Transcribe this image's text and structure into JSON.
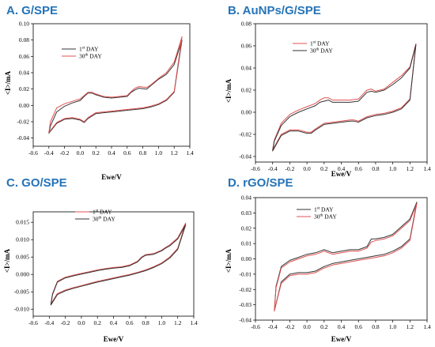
{
  "colors": {
    "panel_label": "#2574b8",
    "day1": "#333333",
    "day30": "#e05050"
  },
  "chart_data": [
    {
      "type": "line",
      "panel_label": "A.   G/SPE",
      "xlabel": "Ewe/V",
      "ylabel": "<I>/mA",
      "xlim": [
        -0.6,
        1.4
      ],
      "ylim": [
        -0.05,
        0.1
      ],
      "xticks": [
        "-0.6",
        "-0.4",
        "-0.2",
        "0.0",
        "0.2",
        "0.4",
        "0.6",
        "0.8",
        "1.0",
        "1.2",
        "1.4"
      ],
      "yticks": [
        "-0.04",
        "-0.02",
        "0.00",
        "0.02",
        "0.04",
        "0.06",
        "0.08",
        "0.10"
      ],
      "legend": [
        "1st DAY",
        "30th DAY"
      ],
      "series": [
        {
          "name": "1st DAY",
          "color": "#333333",
          "x": [
            -0.4,
            -0.3,
            -0.2,
            -0.1,
            0.0,
            0.05,
            0.1,
            0.2,
            0.3,
            0.4,
            0.5,
            0.6,
            0.7,
            0.8,
            0.9,
            1.0,
            1.1,
            1.2,
            1.3,
            1.3,
            1.2,
            1.1,
            1.0,
            0.9,
            0.85,
            0.75,
            0.7,
            0.65,
            0.6,
            0.5,
            0.4,
            0.3,
            0.2,
            0.15,
            0.1,
            0.05,
            0.0,
            -0.1,
            -0.2,
            -0.3,
            -0.38,
            -0.4
          ],
          "y": [
            -0.034,
            -0.022,
            -0.017,
            -0.016,
            -0.018,
            -0.021,
            -0.016,
            -0.01,
            -0.009,
            -0.008,
            -0.007,
            -0.006,
            -0.005,
            -0.004,
            -0.002,
            0.001,
            0.006,
            0.016,
            0.08,
            0.08,
            0.05,
            0.038,
            0.032,
            0.024,
            0.02,
            0.021,
            0.019,
            0.016,
            0.011,
            0.01,
            0.009,
            0.01,
            0.013,
            0.015,
            0.015,
            0.011,
            0.006,
            0.003,
            -0.001,
            -0.008,
            -0.025,
            -0.034
          ]
        },
        {
          "name": "30th DAY",
          "color": "#e05050",
          "x": [
            -0.4,
            -0.3,
            -0.2,
            -0.1,
            0.0,
            0.05,
            0.1,
            0.2,
            0.3,
            0.4,
            0.5,
            0.6,
            0.7,
            0.8,
            0.9,
            1.0,
            1.1,
            1.2,
            1.3,
            1.3,
            1.2,
            1.1,
            1.0,
            0.9,
            0.85,
            0.75,
            0.7,
            0.65,
            0.6,
            0.5,
            0.4,
            0.3,
            0.2,
            0.15,
            0.1,
            0.05,
            0.0,
            -0.1,
            -0.2,
            -0.3,
            -0.38,
            -0.4
          ],
          "y": [
            -0.033,
            -0.021,
            -0.016,
            -0.015,
            -0.017,
            -0.02,
            -0.015,
            -0.009,
            -0.008,
            -0.007,
            -0.006,
            -0.005,
            -0.004,
            -0.003,
            -0.001,
            0.002,
            0.007,
            0.017,
            0.084,
            0.084,
            0.053,
            0.04,
            0.033,
            0.025,
            0.022,
            0.023,
            0.021,
            0.017,
            0.012,
            0.011,
            0.01,
            0.011,
            0.014,
            0.016,
            0.016,
            0.012,
            0.008,
            0.005,
            0.002,
            -0.003,
            -0.02,
            -0.033
          ]
        }
      ]
    },
    {
      "type": "line",
      "panel_label": "B.   AuNPs/G/SPE",
      "xlabel": "Ewe/V",
      "ylabel": "<I>/mA",
      "xlim": [
        -0.6,
        1.4
      ],
      "ylim": [
        -0.045,
        0.08
      ],
      "xticks": [
        "-0.6",
        "-0.4",
        "-0.2",
        "0.0",
        "0.2",
        "0.4",
        "0.6",
        "0.8",
        "1.0",
        "1.2",
        "1.4"
      ],
      "yticks": [
        "-0.04",
        "-0.02",
        "0.00",
        "0.02",
        "0.04",
        "0.06",
        "0.08"
      ],
      "legend": [
        "1st DAY",
        "30th DAY"
      ],
      "series": [
        {
          "name": "1st DAY",
          "color": "#e05050",
          "x": [
            -0.4,
            -0.3,
            -0.2,
            -0.1,
            0.0,
            0.05,
            0.1,
            0.2,
            0.3,
            0.4,
            0.5,
            0.55,
            0.6,
            0.7,
            0.8,
            0.9,
            1.0,
            1.1,
            1.2,
            1.27,
            1.27,
            1.2,
            1.1,
            1.0,
            0.9,
            0.8,
            0.75,
            0.7,
            0.65,
            0.6,
            0.5,
            0.4,
            0.3,
            0.25,
            0.2,
            0.15,
            0.1,
            0.0,
            -0.1,
            -0.2,
            -0.3,
            -0.38,
            -0.4
          ],
          "y": [
            -0.034,
            -0.02,
            -0.016,
            -0.016,
            -0.018,
            -0.018,
            -0.015,
            -0.01,
            -0.009,
            -0.008,
            -0.007,
            -0.007,
            -0.008,
            -0.004,
            -0.002,
            -0.001,
            0.001,
            0.004,
            0.012,
            0.062,
            0.062,
            0.041,
            0.033,
            0.027,
            0.021,
            0.019,
            0.021,
            0.02,
            0.016,
            0.012,
            0.011,
            0.011,
            0.011,
            0.013,
            0.013,
            0.011,
            0.008,
            0.005,
            0.002,
            -0.002,
            -0.01,
            -0.025,
            -0.034
          ]
        },
        {
          "name": "30th DAY",
          "color": "#333333",
          "x": [
            -0.4,
            -0.3,
            -0.2,
            -0.1,
            0.0,
            0.05,
            0.1,
            0.2,
            0.3,
            0.4,
            0.5,
            0.55,
            0.6,
            0.7,
            0.8,
            0.9,
            1.0,
            1.1,
            1.2,
            1.27,
            1.27,
            1.2,
            1.1,
            1.0,
            0.9,
            0.8,
            0.75,
            0.7,
            0.65,
            0.6,
            0.5,
            0.4,
            0.3,
            0.25,
            0.2,
            0.15,
            0.1,
            0.0,
            -0.1,
            -0.2,
            -0.3,
            -0.38,
            -0.4
          ],
          "y": [
            -0.035,
            -0.021,
            -0.017,
            -0.017,
            -0.019,
            -0.019,
            -0.016,
            -0.011,
            -0.01,
            -0.009,
            -0.008,
            -0.008,
            -0.009,
            -0.005,
            -0.003,
            -0.002,
            0.0,
            0.003,
            0.011,
            0.061,
            0.061,
            0.04,
            0.031,
            0.025,
            0.02,
            0.018,
            0.019,
            0.018,
            0.014,
            0.01,
            0.009,
            0.009,
            0.009,
            0.011,
            0.01,
            0.009,
            0.006,
            0.003,
            0.0,
            -0.004,
            -0.012,
            -0.026,
            -0.035
          ]
        }
      ]
    },
    {
      "type": "line",
      "panel_label": "C.   GO/SPE",
      "xlabel": "Ewe/V",
      "ylabel": "<I>/mA",
      "xlim": [
        -0.6,
        1.4
      ],
      "ylim": [
        -0.012,
        0.018
      ],
      "xticks": [
        "-0.6",
        "-0.4",
        "-0.2",
        "0.0",
        "0.2",
        "0.4",
        "0.6",
        "0.8",
        "1.0",
        "1.2",
        "1.4"
      ],
      "yticks": [
        "-0.010",
        "-0.005",
        "0.000",
        "0.005",
        "0.010",
        "0.015"
      ],
      "legend": [
        "1st DAY",
        "30th DAY"
      ],
      "series": [
        {
          "name": "1st DAY",
          "color": "#e05050",
          "x": [
            -0.38,
            -0.3,
            -0.2,
            -0.1,
            0.0,
            0.1,
            0.2,
            0.3,
            0.4,
            0.5,
            0.6,
            0.7,
            0.8,
            0.9,
            1.0,
            1.1,
            1.2,
            1.3,
            1.3,
            1.2,
            1.1,
            1.05,
            1.0,
            0.9,
            0.8,
            0.75,
            0.7,
            0.6,
            0.5,
            0.4,
            0.3,
            0.2,
            0.1,
            0.0,
            -0.1,
            -0.2,
            -0.3,
            -0.36,
            -0.38
          ],
          "y": [
            -0.0085,
            -0.0055,
            -0.0045,
            -0.0038,
            -0.0032,
            -0.0026,
            -0.002,
            -0.0015,
            -0.001,
            -0.0005,
            0.0,
            0.0006,
            0.0013,
            0.0022,
            0.0033,
            0.005,
            0.0075,
            0.0148,
            0.0148,
            0.0105,
            0.0085,
            0.0078,
            0.007,
            0.006,
            0.0057,
            0.005,
            0.0038,
            0.0027,
            0.0022,
            0.002,
            0.0017,
            0.0013,
            0.0008,
            0.0003,
            -0.0002,
            -0.0008,
            -0.002,
            -0.0055,
            -0.0085
          ]
        },
        {
          "name": "30th DAY",
          "color": "#333333",
          "x": [
            -0.38,
            -0.3,
            -0.2,
            -0.1,
            0.0,
            0.1,
            0.2,
            0.3,
            0.4,
            0.5,
            0.6,
            0.7,
            0.8,
            0.9,
            1.0,
            1.1,
            1.2,
            1.3,
            1.3,
            1.2,
            1.1,
            1.05,
            1.0,
            0.9,
            0.8,
            0.75,
            0.7,
            0.6,
            0.5,
            0.4,
            0.3,
            0.2,
            0.1,
            0.0,
            -0.1,
            -0.2,
            -0.3,
            -0.36,
            -0.38
          ],
          "y": [
            -0.0088,
            -0.0058,
            -0.0047,
            -0.004,
            -0.0034,
            -0.0028,
            -0.0022,
            -0.0017,
            -0.0012,
            -0.0007,
            -0.0002,
            0.0004,
            0.0011,
            0.002,
            0.0031,
            0.0047,
            0.0072,
            0.0143,
            0.0143,
            0.0102,
            0.0082,
            0.0076,
            0.0068,
            0.0058,
            0.0055,
            0.0048,
            0.0036,
            0.0025,
            0.002,
            0.0018,
            0.0015,
            0.0011,
            0.0006,
            0.0001,
            -0.0004,
            -0.001,
            -0.0022,
            -0.0058,
            -0.0088
          ]
        }
      ]
    },
    {
      "type": "line",
      "panel_label": "D.   rGO/SPE",
      "xlabel": "Ewe/V",
      "ylabel": "<I>/mA",
      "xlim": [
        -0.6,
        1.4
      ],
      "ylim": [
        -0.04,
        0.04
      ],
      "xticks": [
        "-0.6",
        "-0.4",
        "-0.2",
        "0.0",
        "0.2",
        "0.4",
        "0.6",
        "0.8",
        "1.0",
        "1.2",
        "1.4"
      ],
      "yticks": [
        "-0.04",
        "-0.03",
        "-0.02",
        "-0.01",
        "0.00",
        "0.01",
        "0.02",
        "0.03",
        "0.04"
      ],
      "legend": [
        "1st DAY",
        "30th DAY"
      ],
      "series": [
        {
          "name": "1st DAY",
          "color": "#333333",
          "x": [
            -0.38,
            -0.3,
            -0.2,
            -0.1,
            0.0,
            0.1,
            0.2,
            0.3,
            0.4,
            0.5,
            0.6,
            0.7,
            0.8,
            0.9,
            1.0,
            1.1,
            1.2,
            1.28,
            1.28,
            1.2,
            1.1,
            1.0,
            0.9,
            0.8,
            0.75,
            0.7,
            0.6,
            0.5,
            0.4,
            0.3,
            0.2,
            0.15,
            0.1,
            0.0,
            -0.1,
            -0.2,
            -0.3,
            -0.36,
            -0.38
          ],
          "y": [
            -0.034,
            -0.015,
            -0.01,
            -0.009,
            -0.009,
            -0.008,
            -0.005,
            -0.003,
            -0.002,
            -0.001,
            0.0,
            0.001,
            0.002,
            0.003,
            0.005,
            0.008,
            0.013,
            0.037,
            0.037,
            0.026,
            0.021,
            0.016,
            0.014,
            0.013,
            0.013,
            0.008,
            0.006,
            0.006,
            0.005,
            0.004,
            0.006,
            0.005,
            0.004,
            0.003,
            0.001,
            -0.001,
            -0.005,
            -0.018,
            -0.034
          ]
        },
        {
          "name": "30th DAY",
          "color": "#e05050",
          "x": [
            -0.38,
            -0.3,
            -0.2,
            -0.1,
            0.0,
            0.1,
            0.2,
            0.3,
            0.4,
            0.5,
            0.6,
            0.7,
            0.8,
            0.9,
            1.0,
            1.1,
            1.2,
            1.28,
            1.28,
            1.2,
            1.1,
            1.0,
            0.9,
            0.8,
            0.75,
            0.7,
            0.6,
            0.5,
            0.4,
            0.3,
            0.2,
            0.15,
            0.1,
            0.0,
            -0.1,
            -0.2,
            -0.3,
            -0.36,
            -0.38
          ],
          "y": [
            -0.034,
            -0.016,
            -0.011,
            -0.01,
            -0.01,
            -0.009,
            -0.006,
            -0.004,
            -0.003,
            -0.002,
            -0.001,
            0.0,
            0.001,
            0.002,
            0.004,
            0.007,
            0.012,
            0.036,
            0.036,
            0.025,
            0.02,
            0.015,
            0.013,
            0.012,
            0.011,
            0.007,
            0.005,
            0.005,
            0.004,
            0.003,
            0.005,
            0.004,
            0.003,
            0.002,
            0.0,
            -0.002,
            -0.006,
            -0.019,
            -0.034
          ]
        }
      ]
    }
  ]
}
